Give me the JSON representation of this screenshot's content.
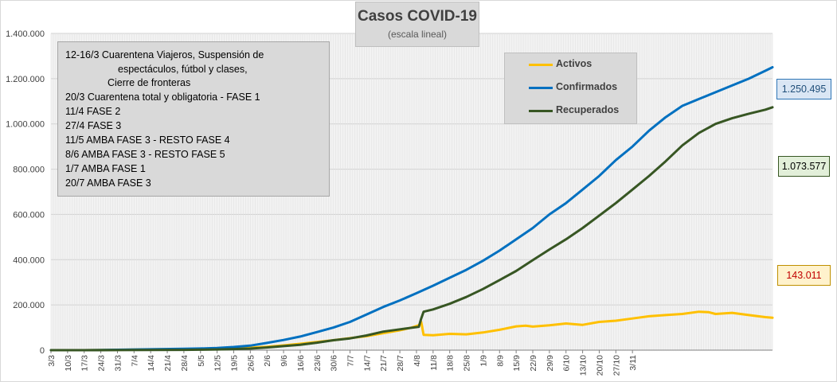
{
  "chart_data": {
    "type": "line",
    "title": "Casos  COVID-19",
    "subtitle": "(escala lineal)",
    "xlabel": "",
    "ylabel": "",
    "ylim": [
      0,
      1400000
    ],
    "yticks": [
      0,
      200000,
      400000,
      600000,
      800000,
      1000000,
      1200000,
      1400000
    ],
    "ytick_labels": [
      "0",
      "200.000",
      "400.000",
      "600.000",
      "800.000",
      "1.000.000",
      "1.200.000",
      "1.400.000"
    ],
    "xtick_labels": [
      "3/3",
      "10/3",
      "17/3",
      "24/3",
      "31/3",
      "7/4",
      "14/4",
      "21/4",
      "28/4",
      "5/5",
      "12/5",
      "19/5",
      "26/5",
      "2/6",
      "9/6",
      "16/6",
      "23/6",
      "30/6",
      "7/7",
      "14/7",
      "21/7",
      "28/7",
      "4/8",
      "11/8",
      "18/8",
      "25/8",
      "1/9",
      "8/9",
      "15/9",
      "22/9",
      "29/9",
      "6/10",
      "13/10",
      "20/10",
      "27/10",
      "3/11"
    ],
    "grid": true,
    "legend_position": "top-right",
    "series": [
      {
        "name": "Activos",
        "color": "#ffc000",
        "points": [
          [
            0,
            0
          ],
          [
            14,
            50
          ],
          [
            28,
            1500
          ],
          [
            42,
            3500
          ],
          [
            56,
            5000
          ],
          [
            63,
            5500
          ],
          [
            70,
            7000
          ],
          [
            77,
            9000
          ],
          [
            84,
            11000
          ],
          [
            91,
            15000
          ],
          [
            98,
            21000
          ],
          [
            105,
            28000
          ],
          [
            112,
            36000
          ],
          [
            119,
            44000
          ],
          [
            126,
            53000
          ],
          [
            133,
            62000
          ],
          [
            140,
            75000
          ],
          [
            147,
            88000
          ],
          [
            152,
            100000
          ],
          [
            155,
            110000
          ],
          [
            156,
            125000
          ],
          [
            157,
            68000
          ],
          [
            161,
            66000
          ],
          [
            168,
            72000
          ],
          [
            175,
            70000
          ],
          [
            182,
            78000
          ],
          [
            189,
            90000
          ],
          [
            196,
            105000
          ],
          [
            200,
            108000
          ],
          [
            203,
            104000
          ],
          [
            210,
            110000
          ],
          [
            217,
            118000
          ],
          [
            224,
            112000
          ],
          [
            231,
            125000
          ],
          [
            238,
            130000
          ],
          [
            245,
            140000
          ],
          [
            252,
            150000
          ],
          [
            259,
            155000
          ],
          [
            266,
            160000
          ],
          [
            273,
            170000
          ],
          [
            277,
            168000
          ],
          [
            280,
            160000
          ],
          [
            287,
            165000
          ],
          [
            294,
            155000
          ],
          [
            298,
            150000
          ],
          [
            301,
            146000
          ],
          [
            304,
            143011
          ]
        ]
      },
      {
        "name": "Confirmados",
        "color": "#0070c0",
        "points": [
          [
            0,
            0
          ],
          [
            14,
            100
          ],
          [
            28,
            1800
          ],
          [
            42,
            4000
          ],
          [
            56,
            6500
          ],
          [
            63,
            7500
          ],
          [
            70,
            10000
          ],
          [
            77,
            14000
          ],
          [
            84,
            20000
          ],
          [
            91,
            32000
          ],
          [
            98,
            45000
          ],
          [
            105,
            60000
          ],
          [
            112,
            80000
          ],
          [
            119,
            100000
          ],
          [
            126,
            125000
          ],
          [
            133,
            158000
          ],
          [
            140,
            191000
          ],
          [
            147,
            220000
          ],
          [
            154,
            252000
          ],
          [
            161,
            285000
          ],
          [
            168,
            320000
          ],
          [
            175,
            355000
          ],
          [
            182,
            395000
          ],
          [
            189,
            440000
          ],
          [
            196,
            490000
          ],
          [
            203,
            540000
          ],
          [
            210,
            600000
          ],
          [
            217,
            650000
          ],
          [
            224,
            710000
          ],
          [
            231,
            770000
          ],
          [
            238,
            840000
          ],
          [
            245,
            900000
          ],
          [
            252,
            970000
          ],
          [
            259,
            1030000
          ],
          [
            266,
            1080000
          ],
          [
            273,
            1110000
          ],
          [
            280,
            1140000
          ],
          [
            287,
            1170000
          ],
          [
            294,
            1200000
          ],
          [
            301,
            1235000
          ],
          [
            304,
            1250495
          ]
        ]
      },
      {
        "name": "Recuperados",
        "color": "#375623",
        "points": [
          [
            0,
            0
          ],
          [
            14,
            0
          ],
          [
            28,
            300
          ],
          [
            42,
            1000
          ],
          [
            56,
            1500
          ],
          [
            63,
            2000
          ],
          [
            70,
            3000
          ],
          [
            77,
            5000
          ],
          [
            84,
            7000
          ],
          [
            91,
            12000
          ],
          [
            98,
            18000
          ],
          [
            105,
            24000
          ],
          [
            112,
            33000
          ],
          [
            119,
            44000
          ],
          [
            126,
            52000
          ],
          [
            133,
            65000
          ],
          [
            140,
            82000
          ],
          [
            147,
            92000
          ],
          [
            155,
            103000
          ],
          [
            156,
            140000
          ],
          [
            157,
            170000
          ],
          [
            161,
            180000
          ],
          [
            168,
            205000
          ],
          [
            175,
            235000
          ],
          [
            182,
            270000
          ],
          [
            189,
            310000
          ],
          [
            196,
            350000
          ],
          [
            203,
            398000
          ],
          [
            210,
            445000
          ],
          [
            217,
            490000
          ],
          [
            224,
            540000
          ],
          [
            231,
            595000
          ],
          [
            238,
            650000
          ],
          [
            245,
            710000
          ],
          [
            252,
            770000
          ],
          [
            259,
            835000
          ],
          [
            266,
            905000
          ],
          [
            273,
            960000
          ],
          [
            280,
            1000000
          ],
          [
            287,
            1025000
          ],
          [
            294,
            1045000
          ],
          [
            301,
            1063000
          ],
          [
            304,
            1073577
          ]
        ]
      }
    ],
    "x_count": 305,
    "x_tick_step": 7
  },
  "annotations": [
    {
      "date": "12-16/3",
      "text": "Cuarentena Viajeros, Suspensión de"
    },
    {
      "date": "",
      "text": "espectáculos, fútbol y clases,"
    },
    {
      "date": "",
      "text": "Cierre de fronteras"
    },
    {
      "date": "20/3",
      "text": "Cuarentena total y obligatoria - FASE 1"
    },
    {
      "date": "11/4",
      "text": "FASE 2"
    },
    {
      "date": "27/4",
      "text": "FASE 3"
    },
    {
      "date": "11/5",
      "text": "AMBA FASE 3 - RESTO FASE 4"
    },
    {
      "date": "8/6",
      "text": "AMBA FASE 3 - RESTO FASE 5"
    },
    {
      "date": "1/7",
      "text": "AMBA FASE 1"
    },
    {
      "date": "20/7",
      "text": "AMBA FASE 3"
    }
  ],
  "legend": [
    {
      "label": "Activos",
      "color": "#ffc000"
    },
    {
      "label": "Confirmados",
      "color": "#0070c0"
    },
    {
      "label": "Recuperados",
      "color": "#375623"
    }
  ],
  "callouts": {
    "confirmados": "1.250.495",
    "recuperados": "1.073.577",
    "activos": "143.011"
  }
}
